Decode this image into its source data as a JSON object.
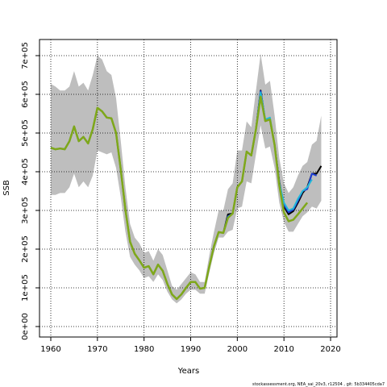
{
  "chart_data": {
    "type": "line",
    "xlabel": "Years",
    "ylabel": "SSB",
    "footer": "stockassessment.org, NEA_sai_20v3, r12504 , git: 5b334405cda7",
    "xlim": [
      1957.58,
      2021.38
    ],
    "ylim": [
      -27083,
      741667
    ],
    "xticks": [
      1960,
      1970,
      1980,
      1990,
      2000,
      2010,
      2020
    ],
    "yticks": [
      {
        "value": 0,
        "label": "0e+00"
      },
      {
        "value": 100000,
        "label": "1e+05"
      },
      {
        "value": 200000,
        "label": "2e+05"
      },
      {
        "value": 300000,
        "label": "3e+05"
      },
      {
        "value": 400000,
        "label": "4e+05"
      },
      {
        "value": 500000,
        "label": "5e+05"
      },
      {
        "value": 600000,
        "label": "6e+05"
      },
      {
        "value": 700000,
        "label": "7e+05"
      }
    ],
    "grid": true,
    "x": [
      1960,
      1961,
      1962,
      1963,
      1964,
      1965,
      1966,
      1967,
      1968,
      1969,
      1970,
      1971,
      1972,
      1973,
      1974,
      1975,
      1976,
      1977,
      1978,
      1979,
      1980,
      1981,
      1982,
      1983,
      1984,
      1985,
      1986,
      1987,
      1988,
      1989,
      1990,
      1991,
      1992,
      1993,
      1994,
      1995,
      1996,
      1997,
      1998,
      1999,
      2000,
      2001,
      2002,
      2003,
      2004,
      2005,
      2006,
      2007,
      2008,
      2009,
      2010,
      2011,
      2012,
      2013,
      2014,
      2015,
      2016,
      2017,
      2018
    ],
    "band": {
      "color": "#bebebe",
      "upper": [
        627000,
        620000,
        610000,
        610000,
        620000,
        660000,
        620000,
        630000,
        610000,
        650000,
        700000,
        690000,
        660000,
        650000,
        590000,
        480000,
        360000,
        265000,
        230000,
        215000,
        190000,
        195000,
        170000,
        200000,
        185000,
        145000,
        105000,
        95000,
        110000,
        125000,
        140000,
        135000,
        115000,
        115000,
        185000,
        245000,
        300000,
        300000,
        355000,
        370000,
        455000,
        455000,
        530000,
        515000,
        610000,
        705000,
        625000,
        635000,
        545000,
        435000,
        370000,
        345000,
        360000,
        390000,
        415000,
        425000,
        470000,
        480000,
        545000
      ],
      "lower": [
        340000,
        340000,
        345000,
        345000,
        360000,
        395000,
        360000,
        375000,
        360000,
        390000,
        455000,
        450000,
        445000,
        450000,
        410000,
        335000,
        245000,
        180000,
        160000,
        145000,
        125000,
        130000,
        115000,
        135000,
        120000,
        90000,
        70000,
        60000,
        70000,
        85000,
        95000,
        95000,
        85000,
        85000,
        140000,
        190000,
        230000,
        230000,
        245000,
        250000,
        305000,
        310000,
        375000,
        370000,
        445000,
        520000,
        460000,
        465000,
        410000,
        320000,
        270000,
        245000,
        245000,
        265000,
        285000,
        295000,
        310000,
        305000,
        325000
      ]
    },
    "series": [
      {
        "color": "#000000",
        "values": [
          462000,
          458000,
          460000,
          458000,
          479000,
          517000,
          479000,
          490000,
          473000,
          510000,
          565000,
          556000,
          540000,
          538000,
          500000,
          406000,
          302000,
          219000,
          188000,
          171000,
          152000,
          156000,
          135000,
          160000,
          144000,
          110000,
          83000,
          71000,
          83000,
          100000,
          115000,
          115000,
          98000,
          100000,
          156000,
          208000,
          244000,
          242000,
          290000,
          292000,
          360000,
          375000,
          452000,
          442000,
          510000,
          610000,
          531000,
          535000,
          469000,
          375000,
          310000,
          290000,
          298000,
          320000,
          345000,
          360000,
          395000,
          395000,
          415000
        ]
      },
      {
        "color": "#1f3fd6",
        "values": [
          462000,
          458000,
          460000,
          458000,
          479000,
          517000,
          479000,
          490000,
          473000,
          510000,
          565000,
          556000,
          540000,
          538000,
          500000,
          406000,
          302000,
          219000,
          188000,
          171000,
          152000,
          156000,
          135000,
          160000,
          144000,
          110000,
          83000,
          71000,
          83000,
          100000,
          115000,
          115000,
          98000,
          100000,
          156000,
          208000,
          244000,
          242000,
          285000,
          292000,
          360000,
          375000,
          452000,
          442000,
          510000,
          608000,
          531000,
          535000,
          469000,
          372000,
          315000,
          295000,
          302000,
          325000,
          350000,
          355000,
          395000,
          390000,
          null
        ]
      },
      {
        "color": "#22b8d8",
        "values": [
          462000,
          458000,
          460000,
          458000,
          479000,
          517000,
          479000,
          490000,
          473000,
          510000,
          565000,
          556000,
          540000,
          538000,
          500000,
          406000,
          302000,
          219000,
          188000,
          171000,
          152000,
          156000,
          135000,
          160000,
          144000,
          110000,
          83000,
          71000,
          83000,
          100000,
          115000,
          115000,
          98000,
          100000,
          156000,
          208000,
          244000,
          242000,
          283000,
          292000,
          360000,
          375000,
          452000,
          442000,
          510000,
          605000,
          535000,
          540000,
          469000,
          370000,
          320000,
          300000,
          305000,
          330000,
          350000,
          360000,
          380000,
          null,
          null
        ]
      },
      {
        "color": "#7fa81a",
        "values": [
          462000,
          458000,
          460000,
          458000,
          479000,
          517000,
          479000,
          490000,
          473000,
          510000,
          565000,
          556000,
          540000,
          538000,
          500000,
          406000,
          302000,
          219000,
          188000,
          171000,
          152000,
          156000,
          135000,
          160000,
          144000,
          110000,
          83000,
          71000,
          83000,
          100000,
          115000,
          115000,
          98000,
          100000,
          156000,
          208000,
          244000,
          242000,
          281000,
          292000,
          360000,
          375000,
          452000,
          442000,
          510000,
          594000,
          531000,
          535000,
          469000,
          365000,
          295000,
          272000,
          276000,
          290000,
          305000,
          320000,
          null,
          null,
          null
        ]
      }
    ]
  }
}
